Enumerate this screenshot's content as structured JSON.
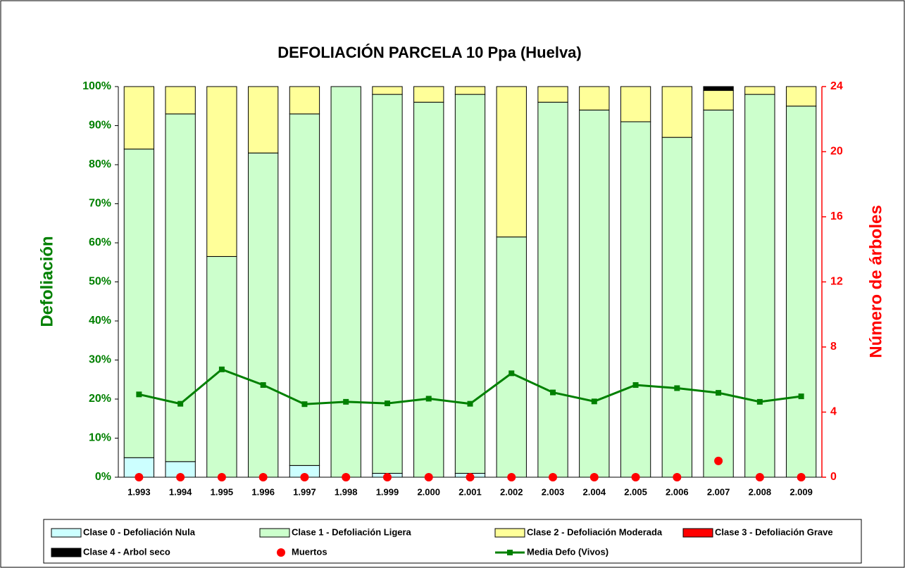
{
  "chart_data": {
    "type": "bar",
    "stacked": true,
    "title": "DEFOLIACIÓN PARCELA 10 Ppa (Huelva)",
    "y_label": "Defoliación",
    "y2_label": "Número de árboles",
    "categories": [
      "1.993",
      "1.994",
      "1.995",
      "1.996",
      "1.997",
      "1.998",
      "1.999",
      "2.000",
      "2.001",
      "2.002",
      "2.003",
      "2.004",
      "2.005",
      "2.006",
      "2.007",
      "2.008",
      "2.009"
    ],
    "ylim": [
      0,
      100
    ],
    "yticks": [
      {
        "value": 0,
        "label": "0%"
      },
      {
        "value": 10,
        "label": "10%"
      },
      {
        "value": 20,
        "label": "20%"
      },
      {
        "value": 30,
        "label": "30%"
      },
      {
        "value": 40,
        "label": "40%"
      },
      {
        "value": 50,
        "label": "50%"
      },
      {
        "value": 60,
        "label": "60%"
      },
      {
        "value": 70,
        "label": "70%"
      },
      {
        "value": 80,
        "label": "80%"
      },
      {
        "value": 90,
        "label": "90%"
      },
      {
        "value": 100,
        "label": "100%"
      }
    ],
    "y2lim": [
      0,
      24
    ],
    "y2ticks": [
      0,
      4,
      8,
      12,
      16,
      20,
      24
    ],
    "y_color": "#008000",
    "y2_color": "#ff0000",
    "series": [
      {
        "name": "Clase 0 - Defoliación Nula",
        "type": "bar",
        "color": "#ccffff",
        "values": [
          5,
          4,
          0,
          0,
          3,
          0,
          1,
          0,
          1,
          0,
          0,
          0,
          0,
          0,
          0,
          0,
          0
        ]
      },
      {
        "name": "Clase 1 - Defoliación Ligera",
        "type": "bar",
        "color": "#ccffcc",
        "values": [
          79,
          89,
          56.5,
          83,
          90,
          100,
          97,
          96,
          97,
          61.5,
          96,
          94,
          91,
          87,
          94,
          98,
          95
        ]
      },
      {
        "name": "Clase 2 - Defoliación Moderada",
        "type": "bar",
        "color": "#ffff99",
        "values": [
          16,
          7,
          43.5,
          17,
          7,
          0,
          2,
          4,
          2,
          38.5,
          4,
          6,
          9,
          13,
          5,
          2,
          5
        ]
      },
      {
        "name": "Clase 3 - Defoliación Grave",
        "type": "bar",
        "color": "#ff0000",
        "values": [
          0,
          0,
          0,
          0,
          0,
          0,
          0,
          0,
          0,
          0,
          0,
          0,
          0,
          0,
          0,
          0,
          0
        ]
      },
      {
        "name": "Clase 4 - Arbol seco",
        "type": "bar",
        "color": "#000000",
        "values": [
          0,
          0,
          0,
          0,
          0,
          0,
          0,
          0,
          0,
          0,
          0,
          0,
          0,
          0,
          1,
          0,
          0
        ]
      },
      {
        "name": "Muertos",
        "type": "scatter",
        "axis": "y2",
        "color": "#ff0000",
        "values": [
          0,
          0,
          0,
          0,
          0,
          0,
          0,
          0,
          0,
          0,
          0,
          0,
          0,
          0,
          1,
          0,
          0
        ]
      },
      {
        "name": "Media Defo (Vivos)",
        "type": "line",
        "color": "#008000",
        "values": [
          21.2,
          18.8,
          27.6,
          23.6,
          18.7,
          19.3,
          18.9,
          20.1,
          18.8,
          26.6,
          21.7,
          19.4,
          23.6,
          22.8,
          21.6,
          19.3,
          20.7
        ]
      }
    ]
  }
}
